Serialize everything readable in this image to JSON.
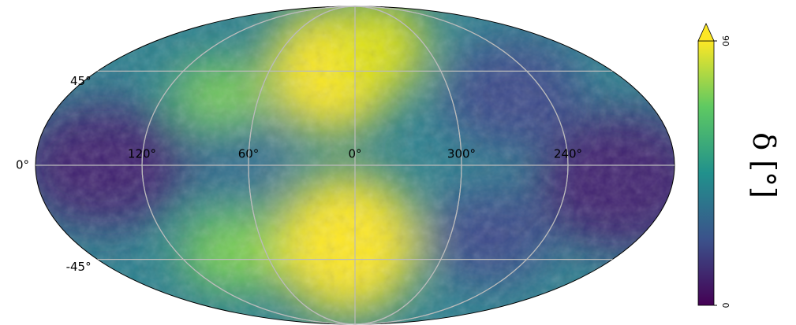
{
  "chart_data": {
    "type": "mollweide",
    "lat_ticks": [
      {
        "value": 45,
        "label": "45°"
      },
      {
        "value": 0,
        "label": "0°"
      },
      {
        "value": -45,
        "label": "-45°"
      }
    ],
    "lon_ticks": [
      {
        "value": 120,
        "label": "120°"
      },
      {
        "value": 60,
        "label": "60°"
      },
      {
        "value": 0,
        "label": "0°"
      },
      {
        "value": 300,
        "label": "300°"
      },
      {
        "value": 240,
        "label": "240°"
      }
    ],
    "grid": true,
    "colorbar": {
      "label": "δ [°]",
      "lim": [
        0,
        90
      ],
      "ticks": [
        0,
        90
      ],
      "extend": "max",
      "colors": [
        "#440154",
        "#3b528b",
        "#21918c",
        "#5ec962",
        "#fde725"
      ]
    }
  }
}
